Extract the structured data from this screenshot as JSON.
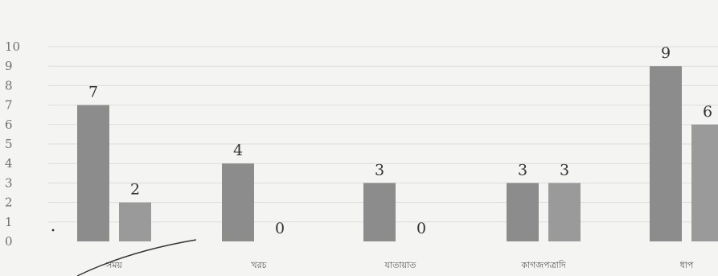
{
  "chart_data": {
    "type": "bar",
    "categories": [
      "সময়",
      "খরচ",
      "যাতায়াত",
      "কাগজপত্রাদি",
      "ধাপ"
    ],
    "series": [
      {
        "values": [
          7,
          4,
          3,
          3,
          9
        ]
      },
      {
        "values": [
          2,
          0,
          0,
          3,
          6
        ]
      }
    ],
    "data_labels": [
      [
        "7",
        "4",
        "3",
        "3",
        "9"
      ],
      [
        "2",
        "0",
        "0",
        "3",
        "6"
      ]
    ],
    "y_ticks": [
      "0",
      "1",
      "2",
      "3",
      "4",
      "5",
      "6",
      "7",
      "8",
      "9",
      "10"
    ],
    "ylim": [
      0,
      10
    ],
    "grid": true,
    "legend": "none",
    "colors": {
      "series0": "#8c8c8c",
      "series1": "#9a9a9a",
      "grid": "#dcdcdc"
    }
  }
}
